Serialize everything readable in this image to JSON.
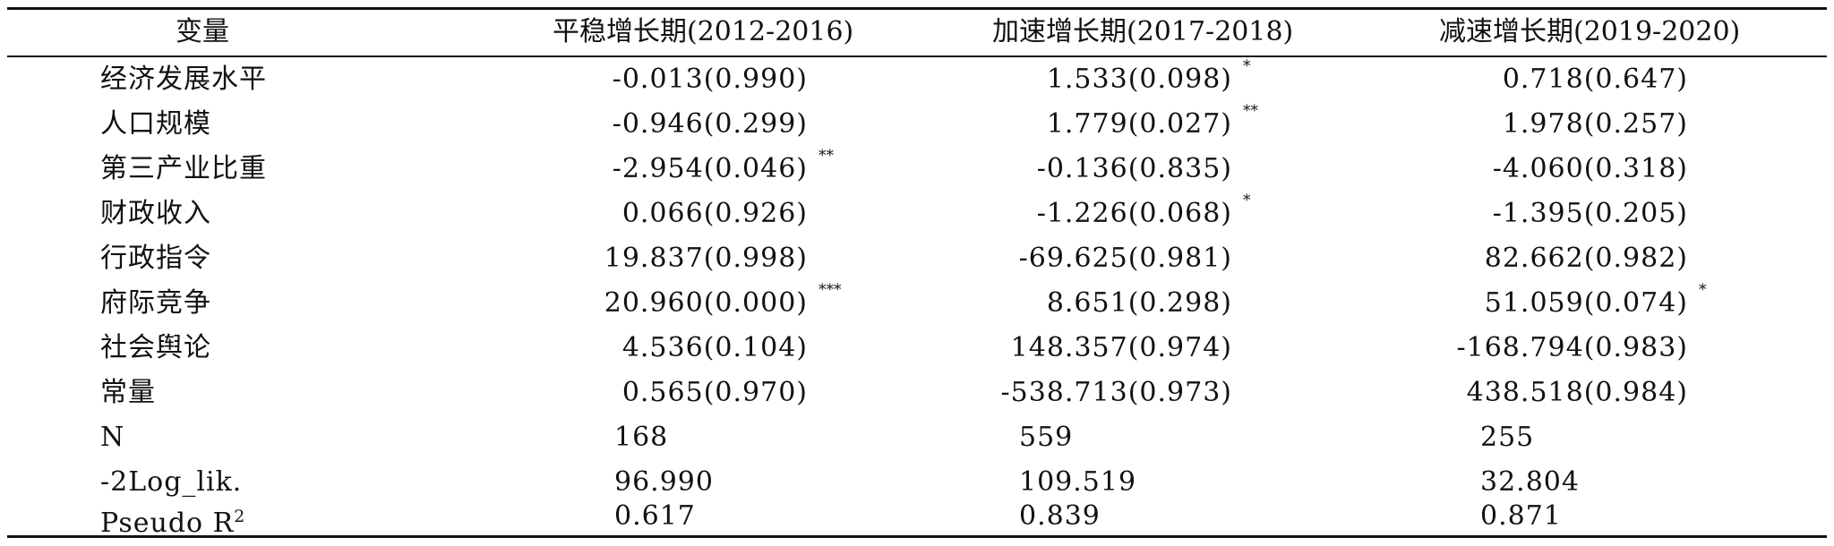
{
  "headers": [
    "变量",
    "平稳增长期(2012-2016)",
    "加速增长期(2017-2018)",
    "减速增长期(2019-2020)"
  ],
  "rows": [
    {
      "label": "经济发展水平",
      "c1": "-0.013(0.990)",
      "s1": "",
      "c2": "1.533(0.098)",
      "s2": "*",
      "c3": "0.718(0.647)",
      "s3": ""
    },
    {
      "label": "人口规模",
      "c1": "-0.946(0.299)",
      "s1": "",
      "c2": "1.779(0.027)",
      "s2": "**",
      "c3": "1.978(0.257)",
      "s3": ""
    },
    {
      "label": "第三产业比重",
      "c1": "-2.954(0.046)",
      "s1": "**",
      "c2": "-0.136(0.835)",
      "s2": "",
      "c3": "-4.060(0.318)",
      "s3": ""
    },
    {
      "label": "财政收入",
      "c1": "0.066(0.926)",
      "s1": "",
      "c2": "-1.226(0.068)",
      "s2": "*",
      "c3": "-1.395(0.205)",
      "s3": ""
    },
    {
      "label": "行政指令",
      "c1": "19.837(0.998)",
      "s1": "",
      "c2": "-69.625(0.981)",
      "s2": "",
      "c3": "82.662(0.982)",
      "s3": ""
    },
    {
      "label": "府际竞争",
      "c1": "20.960(0.000)",
      "s1": "***",
      "c2": "8.651(0.298)",
      "s2": "",
      "c3": "51.059(0.074)",
      "s3": "*"
    },
    {
      "label": "社会舆论",
      "c1": "4.536(0.104)",
      "s1": "",
      "c2": "148.357(0.974)",
      "s2": "",
      "c3": "-168.794(0.983)",
      "s3": ""
    },
    {
      "label": "常量",
      "c1": "0.565(0.970)",
      "s1": "",
      "c2": "-538.713(0.973)",
      "s2": "",
      "c3": "438.518(0.984)",
      "s3": ""
    }
  ],
  "stats": [
    {
      "label": "N",
      "c1": "168",
      "c2": "559",
      "c3": "255"
    },
    {
      "label": "-2Log_lik.",
      "c1": "96.990",
      "c2": "109.519",
      "c3": "32.804"
    },
    {
      "label": "Pseudo R",
      "label_sup": "2",
      "c1": "0.617",
      "c2": "0.839",
      "c3": "0.871"
    }
  ]
}
